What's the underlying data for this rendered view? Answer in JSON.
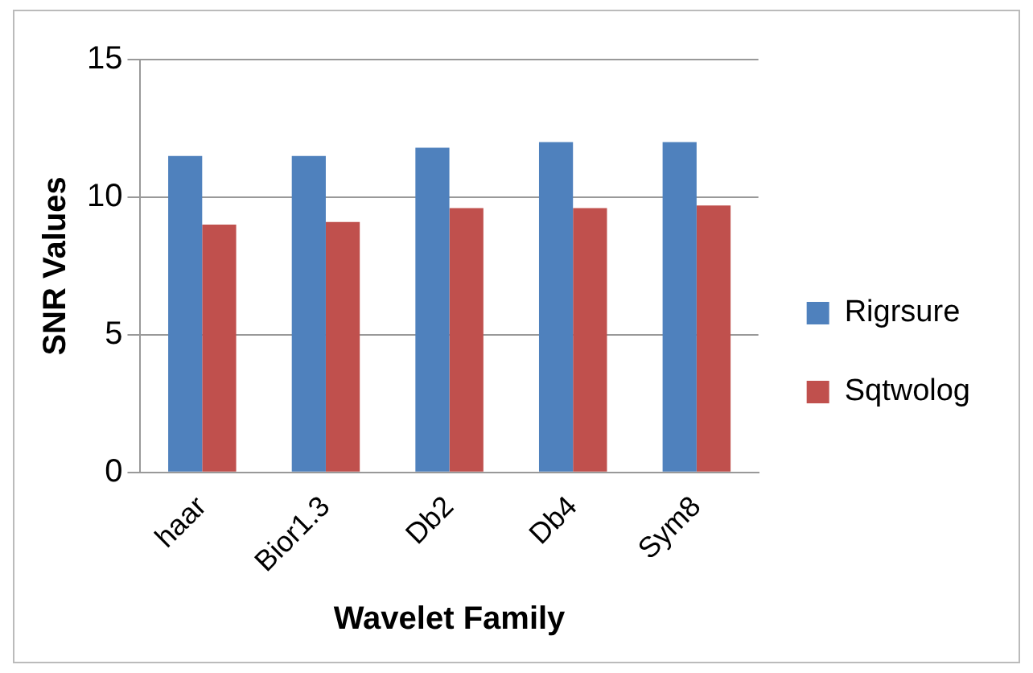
{
  "chart_data": {
    "type": "bar",
    "xlabel": "Wavelet Family",
    "ylabel": "SNR Values",
    "categories": [
      "haar",
      "Bior1.3",
      "Db2",
      "Db4",
      "Sym8"
    ],
    "series": [
      {
        "name": "Rigrsure",
        "color": "#4f81bd",
        "values": [
          11.5,
          11.5,
          11.8,
          12.0,
          12.0
        ]
      },
      {
        "name": "Sqtwolog",
        "color": "#c0504d",
        "values": [
          9.0,
          9.1,
          9.6,
          9.6,
          9.7
        ]
      }
    ],
    "ylim": [
      0,
      15
    ],
    "yticks": [
      0,
      5,
      10,
      15
    ],
    "grid": "y",
    "legend": "right"
  }
}
